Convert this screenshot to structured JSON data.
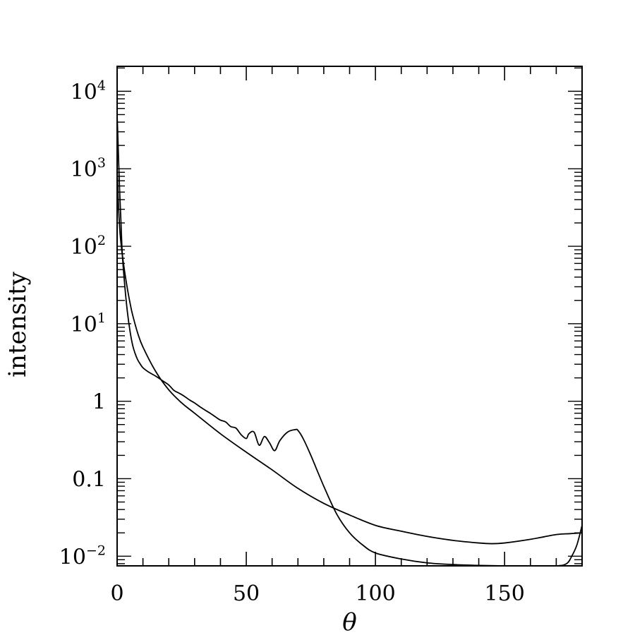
{
  "chart_data": {
    "type": "line",
    "xlabel": "θ",
    "ylabel": "intensity",
    "xlim": [
      0,
      180
    ],
    "ylim": [
      0.0075,
      21000
    ],
    "yscale": "log",
    "grid": false,
    "x_ticks": [
      {
        "value": 0,
        "label": "0"
      },
      {
        "value": 50,
        "label": "50"
      },
      {
        "value": 100,
        "label": "100"
      },
      {
        "value": 150,
        "label": "150"
      }
    ],
    "y_ticks": [
      {
        "value": 0.01,
        "base": "10",
        "exp": "−2"
      },
      {
        "value": 0.1,
        "base": "0.1",
        "exp": ""
      },
      {
        "value": 1,
        "base": "1",
        "exp": ""
      },
      {
        "value": 10,
        "base": "10",
        "exp": "1"
      },
      {
        "value": 100,
        "base": "10",
        "exp": "2"
      },
      {
        "value": 1000,
        "base": "10",
        "exp": "3"
      },
      {
        "value": 10000,
        "base": "10",
        "exp": "4"
      }
    ],
    "series": [
      {
        "x": [
          0,
          0.5,
          1,
          1.5,
          2,
          3,
          4,
          5,
          6,
          8,
          10,
          15,
          20,
          25,
          30,
          40,
          50,
          60,
          70,
          80,
          90,
          100,
          110,
          120,
          130,
          140,
          145,
          150,
          160,
          170,
          175,
          180
        ],
        "y": [
          1000,
          350,
          170,
          110,
          78,
          45,
          28,
          18.5,
          13,
          7.5,
          5,
          2.4,
          1.4,
          0.95,
          0.7,
          0.38,
          0.22,
          0.13,
          0.075,
          0.048,
          0.034,
          0.025,
          0.021,
          0.018,
          0.016,
          0.0148,
          0.0145,
          0.0148,
          0.0165,
          0.019,
          0.0195,
          0.02
        ]
      },
      {
        "x": [
          0,
          0.3,
          0.6,
          1,
          1.5,
          2,
          3,
          4,
          5,
          6,
          7,
          8,
          9,
          10,
          12,
          15,
          18,
          20,
          22,
          24,
          26,
          28,
          30,
          32,
          34,
          36,
          38,
          40,
          42,
          44,
          46,
          48,
          50,
          51,
          53,
          55,
          57,
          59,
          61,
          63,
          66,
          69,
          70,
          72,
          75,
          80,
          85,
          90,
          95,
          100,
          110,
          120,
          130,
          140,
          150,
          160,
          170,
          174,
          176,
          178,
          180
        ],
        "y": [
          5000,
          2500,
          1200,
          500,
          200,
          80,
          30,
          14,
          8,
          5.3,
          4.1,
          3.4,
          3.0,
          2.7,
          2.4,
          2.1,
          1.8,
          1.62,
          1.38,
          1.27,
          1.16,
          1.04,
          0.95,
          0.85,
          0.77,
          0.7,
          0.63,
          0.57,
          0.54,
          0.47,
          0.45,
          0.37,
          0.33,
          0.38,
          0.4,
          0.27,
          0.35,
          0.29,
          0.23,
          0.31,
          0.4,
          0.43,
          0.42,
          0.33,
          0.2,
          0.08,
          0.035,
          0.02,
          0.014,
          0.011,
          0.0092,
          0.0082,
          0.0078,
          0.0076,
          0.0075,
          0.0074,
          0.0075,
          0.008,
          0.01,
          0.014,
          0.025
        ]
      }
    ]
  }
}
